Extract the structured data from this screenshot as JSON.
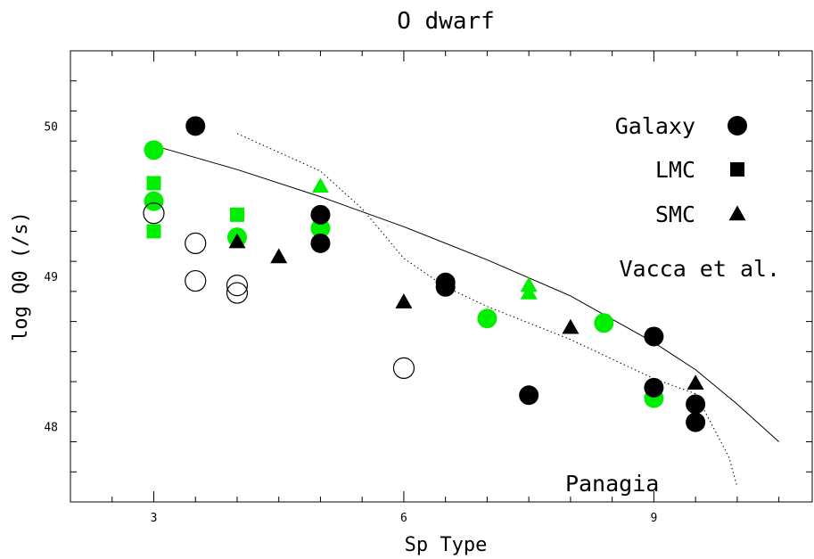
{
  "chart_data": {
    "type": "scatter",
    "title": "O dwarf",
    "xlabel": "Sp Type",
    "ylabel": "log Q0 (/s)",
    "xlim": [
      2.0,
      10.9
    ],
    "ylim": [
      47.5,
      50.5
    ],
    "xticks": [
      3,
      6,
      9
    ],
    "yticks": [
      48,
      49,
      50
    ],
    "grid": false,
    "colors": {
      "green": "#00ee00",
      "black": "#000000"
    },
    "legend": [
      {
        "label": "Galaxy",
        "marker": "circle"
      },
      {
        "label": "LMC",
        "marker": "square"
      },
      {
        "label": "SMC",
        "marker": "triangle"
      }
    ],
    "annotations": [
      {
        "label": "Vacca et al.",
        "x": 9.55,
        "y": 49.0
      },
      {
        "label": "Panagia",
        "x": 8.5,
        "y": 47.57
      }
    ],
    "curves": [
      {
        "name": "Vacca et al.",
        "style": "solid",
        "x": [
          3.0,
          4.0,
          5.0,
          6.0,
          7.0,
          8.0,
          9.0,
          9.5,
          10.0,
          10.5
        ],
        "y": [
          49.87,
          49.71,
          49.53,
          49.33,
          49.11,
          48.87,
          48.56,
          48.38,
          48.15,
          47.9
        ]
      },
      {
        "name": "Panagia",
        "style": "dotted",
        "x": [
          4.0,
          5.0,
          5.5,
          6.0,
          6.5,
          7.0,
          7.5,
          8.0,
          8.5,
          9.0,
          9.5,
          9.9,
          10.0
        ],
        "y": [
          49.95,
          49.7,
          49.45,
          49.12,
          48.93,
          48.8,
          48.69,
          48.58,
          48.45,
          48.32,
          48.22,
          47.8,
          47.6
        ]
      }
    ],
    "series": [
      {
        "marker": "circle",
        "color": "green",
        "fill": "filled",
        "points": [
          [
            3.0,
            49.84
          ],
          [
            3.0,
            49.5
          ],
          [
            4.0,
            49.26
          ],
          [
            5.0,
            49.32
          ],
          [
            7.0,
            48.72
          ],
          [
            8.4,
            48.69
          ],
          [
            9.0,
            48.19
          ]
        ]
      },
      {
        "marker": "circle",
        "color": "black",
        "fill": "filled",
        "points": [
          [
            3.5,
            50.0
          ],
          [
            5.0,
            49.41
          ],
          [
            5.0,
            49.22
          ],
          [
            6.5,
            48.96
          ],
          [
            6.5,
            48.93
          ],
          [
            7.5,
            48.21
          ],
          [
            9.0,
            48.6
          ],
          [
            9.0,
            48.26
          ],
          [
            9.5,
            48.15
          ],
          [
            9.5,
            48.03
          ]
        ]
      },
      {
        "marker": "circle",
        "color": "black",
        "fill": "open",
        "points": [
          [
            3.0,
            49.42
          ],
          [
            3.5,
            49.22
          ],
          [
            3.5,
            48.97
          ],
          [
            4.0,
            48.94
          ],
          [
            4.0,
            48.89
          ],
          [
            6.0,
            48.39
          ]
        ]
      },
      {
        "marker": "square",
        "color": "green",
        "fill": "filled",
        "points": [
          [
            3.0,
            49.62
          ],
          [
            3.0,
            49.3
          ],
          [
            4.0,
            49.41
          ]
        ]
      },
      {
        "marker": "triangle",
        "color": "green",
        "fill": "filled",
        "points": [
          [
            5.0,
            49.6
          ],
          [
            7.5,
            48.94
          ],
          [
            7.5,
            48.89
          ]
        ]
      },
      {
        "marker": "triangle",
        "color": "black",
        "fill": "filled",
        "points": [
          [
            4.0,
            49.23
          ],
          [
            4.5,
            49.13
          ],
          [
            6.0,
            48.83
          ],
          [
            8.0,
            48.66
          ],
          [
            9.5,
            48.29
          ]
        ]
      }
    ]
  }
}
